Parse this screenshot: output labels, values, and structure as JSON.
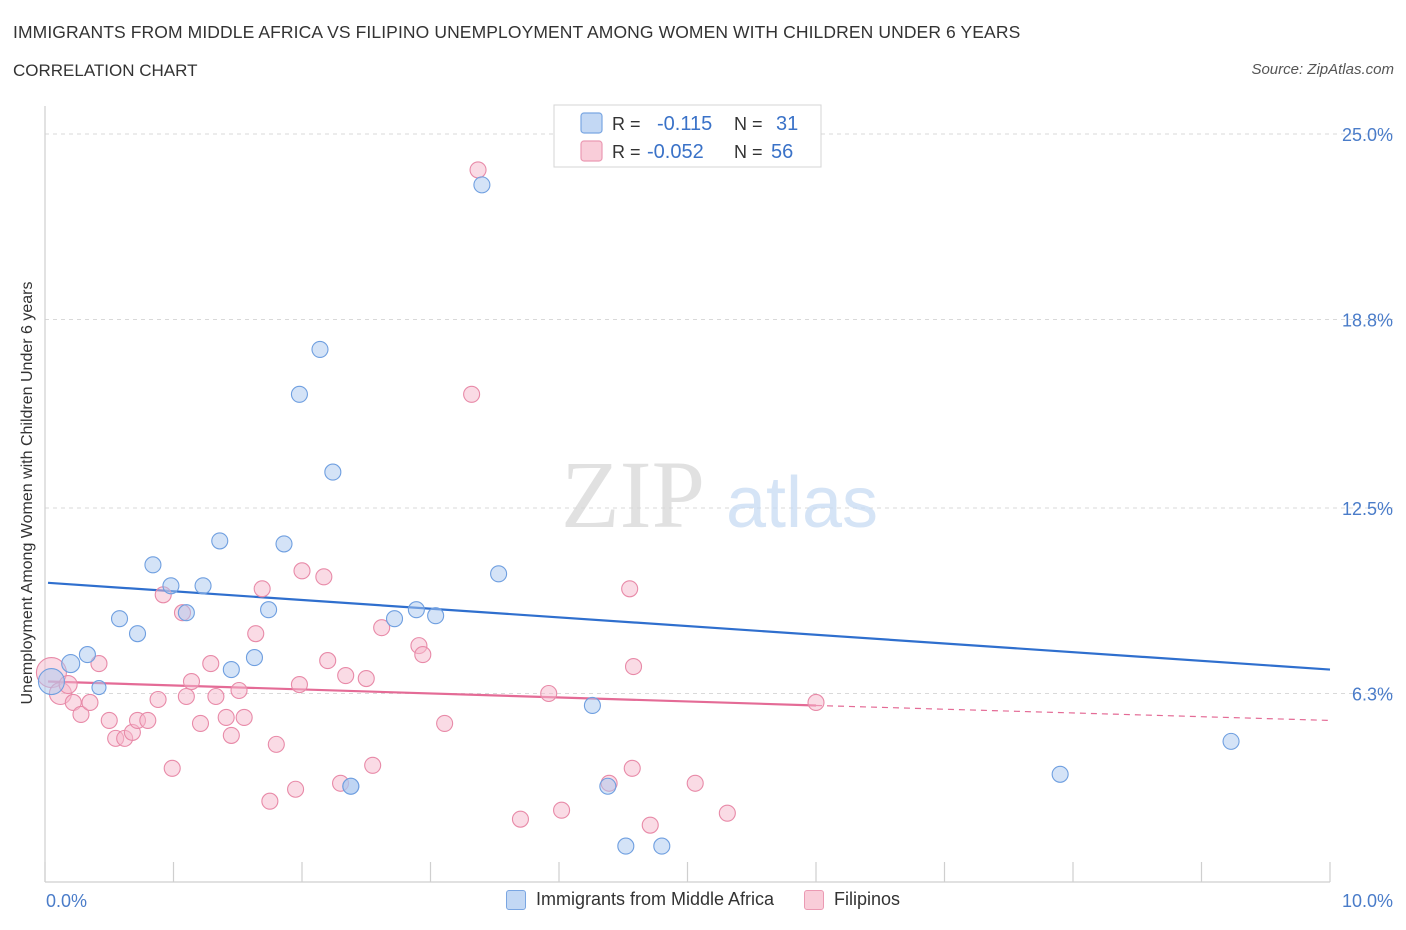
{
  "header": {
    "title": "IMMIGRANTS FROM MIDDLE AFRICA VS FILIPINO UNEMPLOYMENT AMONG WOMEN WITH CHILDREN UNDER 6 YEARS",
    "subtitle": "CORRELATION CHART",
    "source": "Source: ZipAtlas.com"
  },
  "watermark": {
    "zip": "ZIP",
    "atlas": "atlas"
  },
  "stats": {
    "r_label": "R =",
    "n_label": "N =",
    "rows": [
      {
        "r": "-0.115",
        "n": "31"
      },
      {
        "r": "-0.052",
        "n": "56"
      }
    ]
  },
  "colors": {
    "blue_fill": "#a9c7ef",
    "blue_stroke": "#6f9fe0",
    "blue_line": "#2f6fce",
    "pink_fill": "#f5b8cb",
    "pink_stroke": "#e88aa8",
    "pink_line": "#e46b96",
    "axis_label": "#4a7cc9",
    "grid": "#d9d9d9"
  },
  "chart_data": {
    "type": "scatter",
    "title": "IMMIGRANTS FROM MIDDLE AFRICA VS FILIPINO UNEMPLOYMENT AMONG WOMEN WITH CHILDREN UNDER 6 YEARS",
    "ylabel": "Unemployment Among Women with Children Under 6 years",
    "xlabel": "",
    "xlim": [
      0,
      10
    ],
    "ylim": [
      0,
      25.0
    ],
    "x_tick_labels": [
      {
        "value": 0,
        "label": "0.0%"
      },
      {
        "value": 10,
        "label": "10.0%"
      }
    ],
    "y_tick_labels": [
      {
        "value": 6.3,
        "label": "6.3%"
      },
      {
        "value": 12.5,
        "label": "12.5%"
      },
      {
        "value": 18.8,
        "label": "18.8%"
      },
      {
        "value": 25.0,
        "label": "25.0%"
      }
    ],
    "grid": true,
    "legend_position": "bottom-center",
    "series": [
      {
        "name": "Immigrants from Middle Africa",
        "color": "#a9c7ef",
        "trend": {
          "x": [
            0,
            10
          ],
          "y": [
            10.0,
            7.1
          ]
        },
        "points": [
          [
            0.05,
            6.7,
            12
          ],
          [
            0.2,
            7.3,
            8
          ],
          [
            0.33,
            7.6,
            7
          ],
          [
            0.42,
            6.5,
            6
          ],
          [
            0.58,
            8.8,
            7
          ],
          [
            0.72,
            8.3,
            7
          ],
          [
            0.84,
            10.6,
            7
          ],
          [
            0.98,
            9.9,
            7
          ],
          [
            1.1,
            9.0,
            7
          ],
          [
            1.23,
            9.9,
            7
          ],
          [
            1.36,
            11.4,
            7
          ],
          [
            1.45,
            7.1,
            7
          ],
          [
            1.63,
            7.5,
            7
          ],
          [
            1.74,
            9.1,
            7
          ],
          [
            1.86,
            11.3,
            7
          ],
          [
            1.98,
            16.3,
            7
          ],
          [
            2.14,
            17.8,
            7
          ],
          [
            2.24,
            13.7,
            7
          ],
          [
            2.38,
            3.2,
            7
          ],
          [
            2.38,
            3.2,
            7
          ],
          [
            2.72,
            8.8,
            7
          ],
          [
            2.89,
            9.1,
            7
          ],
          [
            3.04,
            8.9,
            7
          ],
          [
            3.4,
            23.3,
            7
          ],
          [
            3.53,
            10.3,
            7
          ],
          [
            4.26,
            5.9,
            7
          ],
          [
            4.38,
            3.2,
            7
          ],
          [
            4.52,
            1.2,
            7
          ],
          [
            4.8,
            1.2,
            7
          ],
          [
            7.9,
            3.6,
            7
          ],
          [
            9.23,
            4.7,
            7
          ]
        ]
      },
      {
        "name": "Filipinos",
        "color": "#f5b8cb",
        "trend": {
          "x": [
            0,
            6.0
          ],
          "y": [
            6.7,
            5.9
          ],
          "dashed_to": [
            10,
            5.4
          ]
        },
        "points": [
          [
            0.05,
            7.0,
            14
          ],
          [
            0.12,
            6.3,
            10
          ],
          [
            0.18,
            6.6,
            8
          ],
          [
            0.22,
            6.0,
            7
          ],
          [
            0.28,
            5.6,
            7
          ],
          [
            0.35,
            6.0,
            7
          ],
          [
            0.42,
            7.3,
            7
          ],
          [
            0.5,
            5.4,
            7
          ],
          [
            0.55,
            4.8,
            7
          ],
          [
            0.62,
            4.8,
            7
          ],
          [
            0.68,
            5.0,
            7
          ],
          [
            0.72,
            5.4,
            7
          ],
          [
            0.8,
            5.4,
            7
          ],
          [
            0.88,
            6.1,
            7
          ],
          [
            0.92,
            9.6,
            7
          ],
          [
            0.99,
            3.8,
            7
          ],
          [
            1.07,
            9.0,
            7
          ],
          [
            1.1,
            6.2,
            7
          ],
          [
            1.14,
            6.7,
            7
          ],
          [
            1.21,
            5.3,
            7
          ],
          [
            1.29,
            7.3,
            7
          ],
          [
            1.33,
            6.2,
            7
          ],
          [
            1.41,
            5.5,
            7
          ],
          [
            1.45,
            4.9,
            7
          ],
          [
            1.51,
            6.4,
            7
          ],
          [
            1.55,
            5.5,
            7
          ],
          [
            1.64,
            8.3,
            7
          ],
          [
            1.69,
            9.8,
            7
          ],
          [
            1.75,
            2.7,
            7
          ],
          [
            1.8,
            4.6,
            7
          ],
          [
            1.95,
            3.1,
            7
          ],
          [
            1.98,
            6.6,
            7
          ],
          [
            2.0,
            10.4,
            7
          ],
          [
            2.17,
            10.2,
            7
          ],
          [
            2.2,
            7.4,
            7
          ],
          [
            2.3,
            3.3,
            7
          ],
          [
            2.34,
            6.9,
            7
          ],
          [
            2.5,
            6.8,
            7
          ],
          [
            2.55,
            3.9,
            7
          ],
          [
            2.62,
            8.5,
            7
          ],
          [
            2.91,
            7.9,
            7
          ],
          [
            2.94,
            7.6,
            7
          ],
          [
            3.11,
            5.3,
            7
          ],
          [
            3.32,
            16.3,
            7
          ],
          [
            3.37,
            23.8,
            7
          ],
          [
            3.7,
            2.1,
            7
          ],
          [
            3.92,
            6.3,
            7
          ],
          [
            4.02,
            2.4,
            7
          ],
          [
            4.39,
            3.3,
            7
          ],
          [
            4.55,
            9.8,
            7
          ],
          [
            4.57,
            3.8,
            7
          ],
          [
            4.58,
            7.2,
            7
          ],
          [
            4.71,
            1.9,
            7
          ],
          [
            5.06,
            3.3,
            7
          ],
          [
            5.31,
            2.3,
            7
          ],
          [
            6.0,
            6.0,
            7
          ]
        ]
      }
    ]
  }
}
